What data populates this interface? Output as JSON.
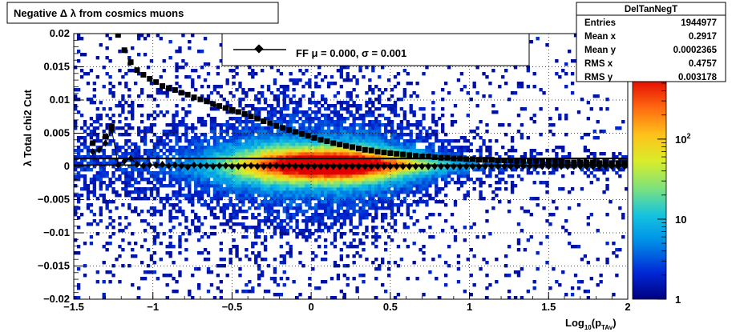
{
  "chart_data": {
    "type": "heatmap",
    "title": "Negative Δ λ from cosmics muons",
    "xlabel": "Log",
    "xlabel_sub": "10",
    "xlabel_arg": "(p",
    "xlabel_arg_sub": "TAv",
    "xlabel_close": ")",
    "ylabel": "λ  Total chi2 Cut",
    "xlim": [
      -1.5,
      2
    ],
    "ylim": [
      -0.02,
      0.02
    ],
    "log_z": true,
    "grid": true,
    "x_ticks": [
      {
        "v": -1.5,
        "label": "−1.5"
      },
      {
        "v": -1,
        "label": "−1"
      },
      {
        "v": -0.5,
        "label": "−0.5"
      },
      {
        "v": 0,
        "label": "0"
      },
      {
        "v": 0.5,
        "label": "0.5"
      },
      {
        "v": 1,
        "label": "1"
      },
      {
        "v": 1.5,
        "label": "1.5"
      },
      {
        "v": 2,
        "label": "2"
      }
    ],
    "y_ticks": [
      {
        "v": 0.02,
        "label": "0.02"
      },
      {
        "v": 0.015,
        "label": "0.015"
      },
      {
        "v": 0.01,
        "label": "0.01"
      },
      {
        "v": 0.005,
        "label": "0.005"
      },
      {
        "v": 0,
        "label": "0"
      },
      {
        "v": -0.005,
        "label": "−0.005"
      },
      {
        "v": -0.01,
        "label": "−0.01"
      },
      {
        "v": -0.015,
        "label": "−0.015"
      },
      {
        "v": -0.02,
        "label": "−0.02"
      }
    ],
    "z_ticks": [
      {
        "v": 1,
        "label": "1",
        "exp": ""
      },
      {
        "v": 10,
        "label": "10",
        "exp": ""
      },
      {
        "v": 100,
        "label": "10",
        "exp": "2"
      }
    ],
    "zlim": [
      1,
      600
    ],
    "fit_legend": {
      "text": "FF μ =  0.000, σ =   0.001"
    },
    "stats": {
      "name": "DelTanNegT",
      "rows": [
        {
          "label": "Entries",
          "value": "1944977"
        },
        {
          "label": "Mean x",
          "value": "0.2917"
        },
        {
          "label": "Mean y",
          "value": "0.0002365"
        },
        {
          "label": "RMS x",
          "value": "0.4757"
        },
        {
          "label": "RMS y",
          "value": "0.003178"
        }
      ]
    },
    "series": [
      {
        "marker": "diamond",
        "x": [
          -1.38,
          -1.34,
          -1.3,
          -1.26,
          -1.22,
          -1.18,
          -1.14,
          -1.1,
          -1.06,
          -1.02,
          -0.98,
          -0.94,
          -0.9,
          -0.86,
          -0.82,
          -0.78,
          -0.74,
          -0.7,
          -0.66,
          -0.62,
          -0.58,
          -0.54,
          -0.5,
          -0.46,
          -0.42,
          -0.38,
          -0.34,
          -0.3,
          -0.26,
          -0.22,
          -0.18,
          -0.14,
          -0.1,
          -0.06,
          -0.02,
          0.02,
          0.06,
          0.1,
          0.14,
          0.18,
          0.22,
          0.26,
          0.3,
          0.34,
          0.38,
          0.42,
          0.46,
          0.5,
          0.54,
          0.58,
          0.62,
          0.66,
          0.7,
          0.74,
          0.78,
          0.82,
          0.86,
          0.9,
          0.94,
          0.98,
          1.02,
          1.06,
          1.1,
          1.14,
          1.18,
          1.22,
          1.26,
          1.3,
          1.34,
          1.38,
          1.42,
          1.46,
          1.5,
          1.54,
          1.58,
          1.62,
          1.66,
          1.7,
          1.74,
          1.78,
          1.82,
          1.86,
          1.9,
          1.94,
          1.98
        ],
        "y": [
          0.0022,
          0.0025,
          0.0035,
          0.0055,
          0.0002,
          0.0008,
          0.0012,
          0.0003,
          0.0001,
          0.0002,
          0.0002,
          0.0003,
          0.0001,
          0.0002,
          0.0001,
          -0.0001,
          0.0002,
          0.0001,
          0.0001,
          0.0,
          0.0001,
          0.0001,
          0.0,
          0.0,
          0.0001,
          0.0001,
          0.0,
          0.0,
          0.0001,
          0.0001,
          0.0,
          0.0001,
          0.0,
          0.0,
          0.0,
          0.0,
          0.0,
          0.0,
          0.0,
          0.0,
          0.0,
          0.0,
          0.0,
          0.0,
          0.0,
          0.0,
          0.0,
          0.0,
          0.0,
          0.0,
          0.0,
          0.0,
          0.0,
          0.0,
          0.0,
          0.0,
          0.0,
          0.0,
          0.0,
          0.0,
          0.0,
          0.0,
          0.0,
          0.0,
          0.0,
          0.0,
          0.0,
          0.0,
          0.0,
          0.0,
          0.0,
          0.0,
          0.0,
          0.0,
          0.0,
          0.0,
          0.0,
          0.0,
          0.0,
          0.0,
          0.0,
          0.0,
          0.0,
          0.0,
          0.0
        ]
      },
      {
        "marker": "square",
        "x": [
          -1.38,
          -1.3,
          -1.26,
          -1.22,
          -1.18,
          -1.14,
          -1.1,
          -1.06,
          -1.02,
          -0.98,
          -0.94,
          -0.9,
          -0.86,
          -0.82,
          -0.78,
          -0.74,
          -0.7,
          -0.66,
          -0.62,
          -0.58,
          -0.54,
          -0.5,
          -0.46,
          -0.42,
          -0.38,
          -0.34,
          -0.3,
          -0.26,
          -0.22,
          -0.18,
          -0.14,
          -0.1,
          -0.06,
          -0.02,
          0.02,
          0.06,
          0.1,
          0.14,
          0.18,
          0.22,
          0.26,
          0.3,
          0.34,
          0.38,
          0.42,
          0.46,
          0.5,
          0.54,
          0.58,
          0.62,
          0.66,
          0.7,
          0.74,
          0.78,
          0.82,
          0.86,
          0.9,
          0.94,
          0.98,
          1.02,
          1.06,
          1.1,
          1.14,
          1.18,
          1.22,
          1.26,
          1.3,
          1.34,
          1.38,
          1.42,
          1.46,
          1.5,
          1.54,
          1.58,
          1.62,
          1.66,
          1.7,
          1.74,
          1.78,
          1.82,
          1.86,
          1.9,
          1.94,
          1.98
        ],
        "y": [
          0.0035,
          0.0045,
          0.006,
          0.0198,
          0.0175,
          0.0157,
          0.0145,
          0.0138,
          0.0132,
          0.0127,
          0.0121,
          0.0118,
          0.0115,
          0.0111,
          0.0108,
          0.0104,
          0.0101,
          0.0098,
          0.0094,
          0.0091,
          0.0088,
          0.0085,
          0.0082,
          0.0079,
          0.0075,
          0.0072,
          0.0068,
          0.0065,
          0.0061,
          0.0058,
          0.0055,
          0.0052,
          0.0049,
          0.0046,
          0.0043,
          0.004,
          0.0038,
          0.0035,
          0.0033,
          0.0031,
          0.0029,
          0.0027,
          0.0025,
          0.0024,
          0.0022,
          0.0021,
          0.002,
          0.0019,
          0.0018,
          0.0017,
          0.0016,
          0.0015,
          0.0015,
          0.0014,
          0.0013,
          0.0013,
          0.0012,
          0.0012,
          0.0011,
          0.0011,
          0.001,
          0.001,
          0.001,
          0.0009,
          0.0009,
          0.0009,
          0.0008,
          0.0008,
          0.0008,
          0.0008,
          0.0007,
          0.0007,
          0.0007,
          0.0007,
          0.0006,
          0.0006,
          0.0006,
          0.0006,
          0.0006,
          0.0005,
          0.0005,
          0.0005,
          0.0005,
          0.0005
        ]
      }
    ]
  }
}
